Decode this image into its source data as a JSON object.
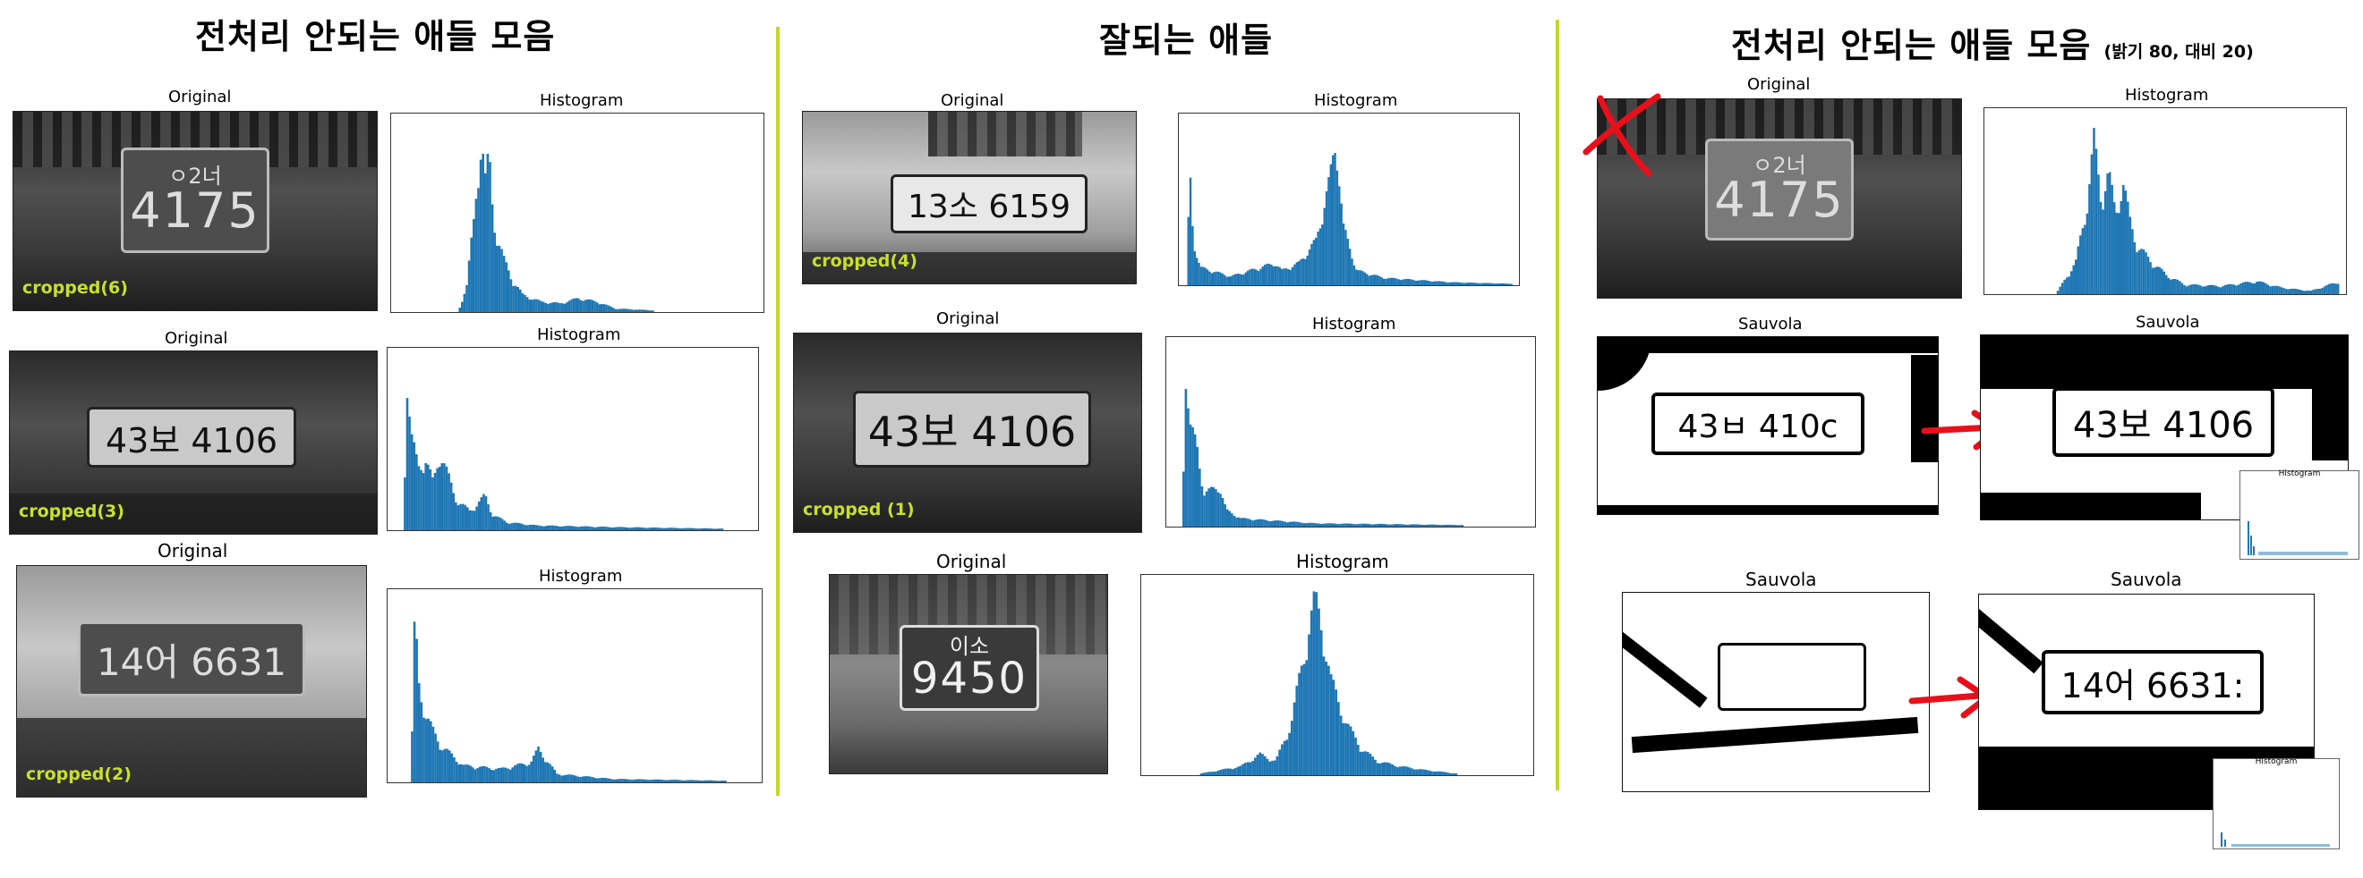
{
  "sections": {
    "left_title": "전처리 안되는 애들 모음",
    "middle_title": "잘되는 애들",
    "right_title": "전처리 안되는 애들 모음",
    "right_subtitle": "(밝기 80, 대비 20)"
  },
  "labels": {
    "original": "Original",
    "histogram": "Histogram",
    "sauvola": "Sauvola",
    "mini_histogram": "Histogram"
  },
  "left_rows": [
    {
      "plate_top": "ㅇ2너",
      "plate_number": "4175",
      "crop_label": "cropped(6)"
    },
    {
      "plate_text": "43보 4106",
      "crop_label": "cropped(3)"
    },
    {
      "plate_text": "14어 6631",
      "crop_label": "cropped(2)"
    }
  ],
  "middle_rows": [
    {
      "plate_text": "13소 6159",
      "crop_label": "cropped(4)"
    },
    {
      "plate_text": "43보 4106",
      "crop_label": "cropped (1)"
    },
    {
      "plate_top": "이소",
      "plate_number": "9450"
    }
  ],
  "right_rows": [
    {
      "plate_top": "ㅇ2너",
      "plate_number": "4175"
    },
    {
      "left_plate": "43ㅂ 410c",
      "right_plate": "43보 4106"
    },
    {
      "right_plate": "14어 6631:"
    }
  ],
  "colors": {
    "divider": "#c3d82a",
    "crop_label": "#c8e02a",
    "histogram_bar": "#1f77b4",
    "annotation": "#e8101a"
  },
  "icons": {
    "cross_mark": "x-mark-icon",
    "arrow": "arrow-right-icon"
  }
}
